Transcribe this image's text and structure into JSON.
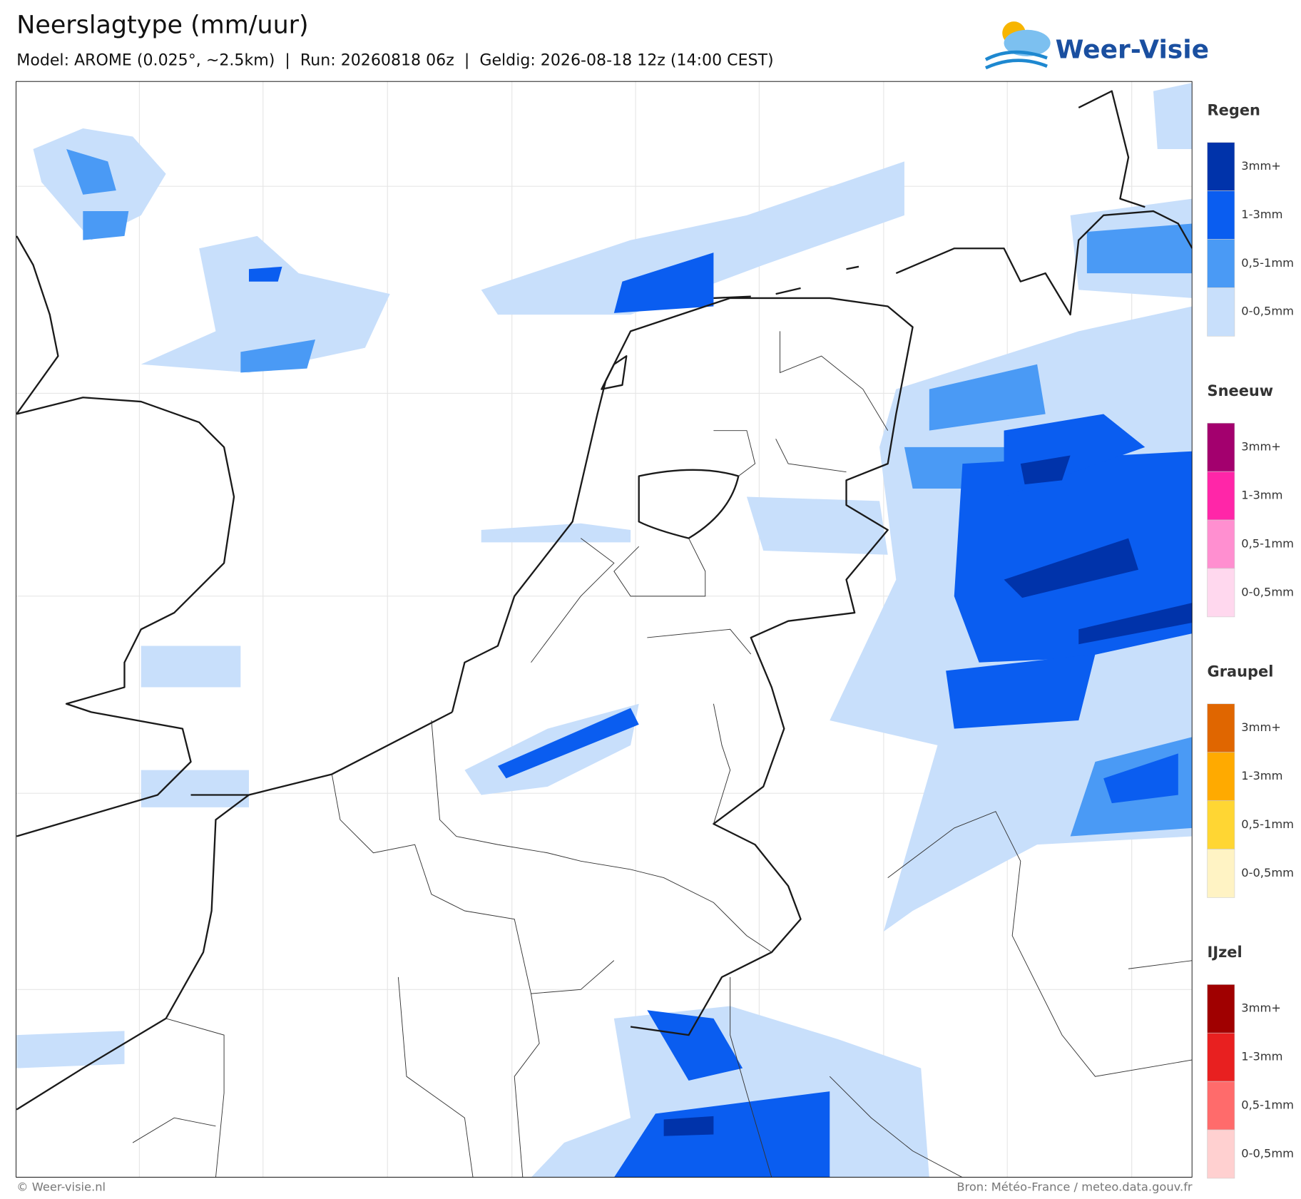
{
  "header": {
    "title": "Neerslagtype (mm/uur)",
    "subtitle": "Model: AROME (0.025°, ~2.5km)  |  Run: 20260818 06z  |  Geldig: 2026-08-18 12z (14:00 CEST)",
    "logo": "Weer-Visie"
  },
  "legend": [
    {
      "title": "Regen",
      "items": [
        {
          "label": "3mm+",
          "color": "#0033aa"
        },
        {
          "label": "1-3mm",
          "color": "#0a5df0"
        },
        {
          "label": "0,5-1mm",
          "color": "#4a9af5"
        },
        {
          "label": "0-0,5mm",
          "color": "#c8dffb"
        }
      ]
    },
    {
      "title": "Sneeuw",
      "items": [
        {
          "label": "3mm+",
          "color": "#a3006e"
        },
        {
          "label": "1-3mm",
          "color": "#ff26a8"
        },
        {
          "label": "0,5-1mm",
          "color": "#ff8fd0"
        },
        {
          "label": "0-0,5mm",
          "color": "#ffd8ee"
        }
      ]
    },
    {
      "title": "Graupel",
      "items": [
        {
          "label": "3mm+",
          "color": "#e06600"
        },
        {
          "label": "1-3mm",
          "color": "#ffaa00"
        },
        {
          "label": "0,5-1mm",
          "color": "#ffd633"
        },
        {
          "label": "0-0,5mm",
          "color": "#fff3c4"
        }
      ]
    },
    {
      "title": "IJzel",
      "items": [
        {
          "label": "3mm+",
          "color": "#a00000"
        },
        {
          "label": "1-3mm",
          "color": "#e82020"
        },
        {
          "label": "0,5-1mm",
          "color": "#ff6b6b"
        },
        {
          "label": "0-0,5mm",
          "color": "#ffd0d0"
        }
      ]
    }
  ],
  "footer": {
    "left": "© Weer-visie.nl",
    "right": "Bron: Météo-France / meteo.data.gouv.fr"
  }
}
